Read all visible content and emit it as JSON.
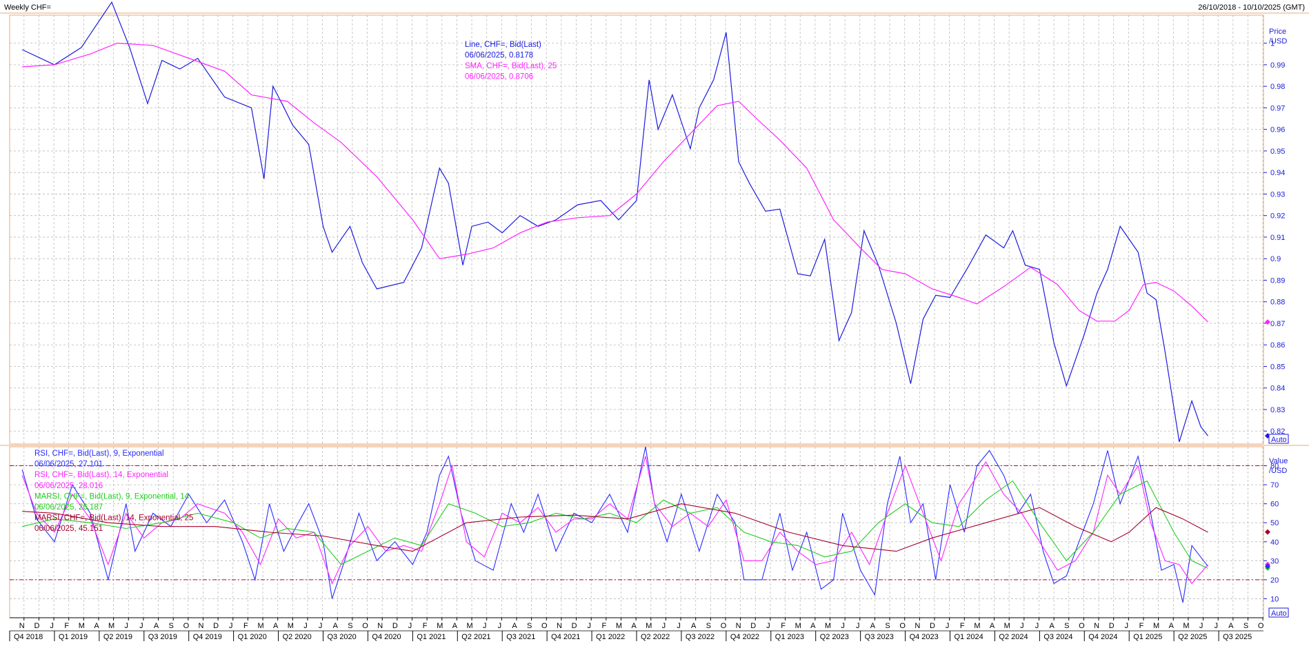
{
  "header": {
    "title": "Weekly CHF=",
    "date_range": "26/10/2018 - 10/10/2025 (GMT)"
  },
  "colors": {
    "price_line": "#1a1adc",
    "sma": "#ff22ff",
    "rsi9": "#2a2aff",
    "rsi14": "#ff22ff",
    "marsi9": "#1fcc1f",
    "marsi14": "#a3002a",
    "band": "#b0003c",
    "grid": "#b8b8b8",
    "frame": "#e8a878"
  },
  "chart_data": [
    {
      "type": "line",
      "panel": "price",
      "legend": [
        {
          "text": "Line, CHF=, Bid(Last)",
          "color": "#1a1adc"
        },
        {
          "text": "06/06/2025, 0.8178",
          "color": "#1a1adc"
        },
        {
          "text": "SMA, CHF=, Bid(Last),  25",
          "color": "#ff22ff"
        },
        {
          "text": "06/06/2025, 0.8706",
          "color": "#ff22ff"
        }
      ],
      "ylabel": "Price",
      "yunit": "/USD",
      "auto_label": "Auto",
      "ylim": [
        0.814,
        1.013
      ],
      "yticks": [
        "0.82",
        "0.83",
        "0.84",
        "0.85",
        "0.86",
        "0.87",
        "0.88",
        "0.89",
        "0.9",
        "0.91",
        "0.92",
        "0.93",
        "0.94",
        "0.95",
        "0.96",
        "0.97",
        "0.98",
        "0.99",
        "1"
      ],
      "last_values": {
        "line": 0.8178,
        "sma": 0.8706
      },
      "series": [
        {
          "name": "Line, CHF=, Bid(Last)",
          "x": [
            2018.82,
            2019.0,
            2019.15,
            2019.32,
            2019.42,
            2019.52,
            2019.6,
            2019.7,
            2019.8,
            2019.95,
            2020.1,
            2020.17,
            2020.22,
            2020.27,
            2020.33,
            2020.42,
            2020.5,
            2020.55,
            2020.65,
            2020.72,
            2020.8,
            2020.95,
            2021.05,
            2021.15,
            2021.2,
            2021.28,
            2021.33,
            2021.42,
            2021.5,
            2021.6,
            2021.7,
            2021.8,
            2021.92,
            2022.05,
            2022.15,
            2022.25,
            2022.32,
            2022.37,
            2022.45,
            2022.55,
            2022.6,
            2022.68,
            2022.75,
            2022.82,
            2022.88,
            2022.97,
            2023.05,
            2023.15,
            2023.22,
            2023.3,
            2023.38,
            2023.45,
            2023.52,
            2023.6,
            2023.7,
            2023.78,
            2023.85,
            2023.92,
            2024.0,
            2024.1,
            2024.2,
            2024.3,
            2024.35,
            2024.42,
            2024.5,
            2024.58,
            2024.65,
            2024.75,
            2024.82,
            2024.88,
            2024.95,
            2025.05,
            2025.1,
            2025.15,
            2025.2,
            2025.28,
            2025.35,
            2025.4,
            2025.44
          ],
          "y": [
            0.997,
            0.99,
            0.998,
            1.019,
            0.998,
            0.972,
            0.992,
            0.988,
            0.993,
            0.975,
            0.97,
            0.937,
            0.98,
            0.972,
            0.962,
            0.953,
            0.915,
            0.903,
            0.915,
            0.898,
            0.886,
            0.889,
            0.905,
            0.942,
            0.935,
            0.897,
            0.915,
            0.917,
            0.912,
            0.92,
            0.915,
            0.918,
            0.925,
            0.927,
            0.918,
            0.927,
            0.983,
            0.96,
            0.976,
            0.951,
            0.97,
            0.983,
            1.005,
            0.945,
            0.935,
            0.922,
            0.923,
            0.893,
            0.892,
            0.909,
            0.862,
            0.875,
            0.913,
            0.897,
            0.87,
            0.842,
            0.872,
            0.883,
            0.882,
            0.896,
            0.911,
            0.905,
            0.913,
            0.897,
            0.895,
            0.861,
            0.841,
            0.865,
            0.884,
            0.895,
            0.915,
            0.903,
            0.884,
            0.881,
            0.857,
            0.815,
            0.834,
            0.822,
            0.8178
          ]
        },
        {
          "name": "SMA, CHF=, Bid(Last),  25",
          "x": [
            2018.82,
            2019.0,
            2019.2,
            2019.35,
            2019.55,
            2019.75,
            2019.95,
            2020.1,
            2020.3,
            2020.45,
            2020.6,
            2020.8,
            2021.0,
            2021.15,
            2021.3,
            2021.45,
            2021.6,
            2021.75,
            2021.92,
            2022.1,
            2022.25,
            2022.4,
            2022.55,
            2022.7,
            2022.82,
            2022.92,
            2023.05,
            2023.2,
            2023.35,
            2023.5,
            2023.62,
            2023.75,
            2023.9,
            2024.05,
            2024.15,
            2024.3,
            2024.45,
            2024.6,
            2024.72,
            2024.82,
            2024.92,
            2025.0,
            2025.08,
            2025.15,
            2025.25,
            2025.35,
            2025.44
          ],
          "y": [
            0.989,
            0.99,
            0.995,
            1.0,
            0.999,
            0.993,
            0.987,
            0.976,
            0.973,
            0.963,
            0.954,
            0.938,
            0.918,
            0.9,
            0.902,
            0.905,
            0.912,
            0.917,
            0.919,
            0.92,
            0.93,
            0.945,
            0.958,
            0.971,
            0.973,
            0.965,
            0.955,
            0.942,
            0.918,
            0.905,
            0.895,
            0.893,
            0.886,
            0.882,
            0.879,
            0.887,
            0.896,
            0.888,
            0.876,
            0.871,
            0.871,
            0.876,
            0.888,
            0.889,
            0.885,
            0.878,
            0.8706
          ]
        }
      ]
    },
    {
      "type": "line",
      "panel": "rsi",
      "legend": [
        {
          "text": "RSI, CHF=, Bid(Last),  9, Exponential",
          "color": "#2a2aff"
        },
        {
          "text": "06/06/2025, 27.101",
          "color": "#2a2aff"
        },
        {
          "text": "RSI, CHF=, Bid(Last),  14, Exponential",
          "color": "#ff22ff"
        },
        {
          "text": "06/06/2025, 28.016",
          "color": "#ff22ff"
        },
        {
          "text": "MARSI, CHF=, Bid(Last),  9, Exponential, 14",
          "color": "#1fcc1f"
        },
        {
          "text": "06/06/2025, 26.187",
          "color": "#1fcc1f"
        },
        {
          "text": "MARSI, CHF=, Bid(Last),  14, Exponential, 25",
          "color": "#a3002a"
        },
        {
          "text": "06/06/2025, 45.151",
          "color": "#a3002a"
        }
      ],
      "ylabel": "Value",
      "yunit": "/USD",
      "ylim": [
        0,
        90
      ],
      "yticks": [
        "10",
        "20",
        "30",
        "40",
        "50",
        "60",
        "70",
        "80"
      ],
      "bands": [
        20,
        80
      ],
      "last_values": {
        "rsi9": 27.101,
        "rsi14": 28.016,
        "marsi9": 26.187,
        "marsi14": 45.151
      },
      "series": [
        {
          "name": "RSI, CHF=, Bid(Last),  9, Exponential",
          "x": [
            2018.82,
            2018.9,
            2019.0,
            2019.1,
            2019.2,
            2019.3,
            2019.4,
            2019.45,
            2019.55,
            2019.65,
            2019.75,
            2019.85,
            2019.95,
            2020.05,
            2020.12,
            2020.2,
            2020.28,
            2020.35,
            2020.42,
            2020.5,
            2020.55,
            2020.62,
            2020.7,
            2020.8,
            2020.9,
            2021.0,
            2021.08,
            2021.15,
            2021.2,
            2021.27,
            2021.35,
            2021.45,
            2021.55,
            2021.62,
            2021.7,
            2021.8,
            2021.9,
            2022.0,
            2022.1,
            2022.2,
            2022.3,
            2022.35,
            2022.42,
            2022.5,
            2022.6,
            2022.7,
            2022.8,
            2022.85,
            2022.95,
            2023.05,
            2023.12,
            2023.2,
            2023.28,
            2023.35,
            2023.4,
            2023.5,
            2023.58,
            2023.65,
            2023.72,
            2023.78,
            2023.85,
            2023.92,
            2024.0,
            2024.08,
            2024.15,
            2024.22,
            2024.3,
            2024.38,
            2024.45,
            2024.52,
            2024.58,
            2024.65,
            2024.72,
            2024.8,
            2024.88,
            2024.95,
            2025.05,
            2025.12,
            2025.18,
            2025.25,
            2025.3,
            2025.35,
            2025.44
          ],
          "y": [
            78,
            52,
            40,
            70,
            55,
            20,
            60,
            35,
            55,
            48,
            65,
            50,
            62,
            40,
            20,
            60,
            35,
            48,
            60,
            40,
            10,
            30,
            55,
            30,
            40,
            28,
            45,
            75,
            85,
            55,
            30,
            25,
            60,
            45,
            65,
            35,
            55,
            50,
            65,
            45,
            90,
            60,
            40,
            65,
            35,
            65,
            50,
            20,
            20,
            55,
            25,
            45,
            15,
            20,
            55,
            25,
            12,
            60,
            85,
            50,
            60,
            20,
            70,
            45,
            80,
            88,
            75,
            55,
            65,
            35,
            18,
            22,
            40,
            60,
            88,
            60,
            85,
            55,
            25,
            28,
            8,
            38,
            27
          ]
        },
        {
          "name": "RSI, CHF=, Bid(Last),  14, Exponential",
          "x": [
            2018.82,
            2018.9,
            2019.0,
            2019.1,
            2019.2,
            2019.3,
            2019.4,
            2019.5,
            2019.6,
            2019.7,
            2019.8,
            2019.95,
            2020.05,
            2020.15,
            2020.25,
            2020.35,
            2020.45,
            2020.55,
            2020.65,
            2020.75,
            2020.85,
            2020.95,
            2021.05,
            2021.15,
            2021.22,
            2021.3,
            2021.4,
            2021.5,
            2021.6,
            2021.7,
            2021.8,
            2021.9,
            2022.0,
            2022.1,
            2022.2,
            2022.3,
            2022.35,
            2022.45,
            2022.55,
            2022.65,
            2022.75,
            2022.85,
            2022.95,
            2023.05,
            2023.15,
            2023.25,
            2023.35,
            2023.45,
            2023.55,
            2023.65,
            2023.75,
            2023.85,
            2023.95,
            2024.05,
            2024.12,
            2024.2,
            2024.3,
            2024.4,
            2024.5,
            2024.6,
            2024.7,
            2024.8,
            2024.88,
            2024.95,
            2025.05,
            2025.12,
            2025.2,
            2025.28,
            2025.35,
            2025.44
          ],
          "y": [
            75,
            55,
            45,
            65,
            52,
            28,
            55,
            42,
            50,
            52,
            60,
            55,
            45,
            28,
            52,
            42,
            45,
            18,
            38,
            48,
            35,
            38,
            35,
            60,
            80,
            40,
            32,
            55,
            50,
            58,
            45,
            52,
            52,
            60,
            52,
            85,
            60,
            48,
            55,
            48,
            62,
            30,
            30,
            45,
            35,
            28,
            30,
            45,
            28,
            55,
            80,
            55,
            30,
            60,
            70,
            82,
            65,
            55,
            40,
            25,
            30,
            45,
            75,
            65,
            80,
            50,
            30,
            28,
            18,
            28
          ]
        },
        {
          "name": "MARSI, CHF=, Bid(Last),  9, Exponential, 14",
          "x": [
            2018.82,
            2019.0,
            2019.2,
            2019.4,
            2019.6,
            2019.8,
            2020.0,
            2020.15,
            2020.3,
            2020.45,
            2020.6,
            2020.75,
            2020.9,
            2021.05,
            2021.2,
            2021.35,
            2021.5,
            2021.65,
            2021.8,
            2021.95,
            2022.1,
            2022.25,
            2022.4,
            2022.55,
            2022.7,
            2022.85,
            2023.0,
            2023.15,
            2023.3,
            2023.45,
            2023.6,
            2023.75,
            2023.9,
            2024.05,
            2024.2,
            2024.35,
            2024.5,
            2024.65,
            2024.8,
            2024.95,
            2025.1,
            2025.25,
            2025.35,
            2025.44
          ],
          "y": [
            48,
            52,
            50,
            47,
            50,
            55,
            50,
            42,
            47,
            45,
            28,
            35,
            42,
            38,
            60,
            55,
            48,
            50,
            55,
            52,
            55,
            50,
            62,
            55,
            58,
            45,
            40,
            38,
            32,
            35,
            50,
            60,
            50,
            48,
            62,
            72,
            50,
            30,
            45,
            65,
            72,
            45,
            30,
            26
          ]
        },
        {
          "name": "MARSI, CHF=, Bid(Last),  14, Exponential, 25",
          "x": [
            2018.82,
            2019.0,
            2019.3,
            2019.6,
            2019.9,
            2020.2,
            2020.5,
            2020.8,
            2021.0,
            2021.3,
            2021.6,
            2021.9,
            2022.2,
            2022.5,
            2022.8,
            2023.1,
            2023.4,
            2023.7,
            2023.9,
            2024.2,
            2024.5,
            2024.7,
            2024.9,
            2025.0,
            2025.15,
            2025.3,
            2025.44
          ],
          "y": [
            56,
            55,
            50,
            48,
            48,
            45,
            43,
            38,
            35,
            50,
            53,
            54,
            52,
            60,
            55,
            45,
            38,
            35,
            42,
            50,
            58,
            48,
            40,
            45,
            58,
            52,
            45
          ]
        }
      ]
    }
  ],
  "xaxis": {
    "start": 2018.75,
    "end": 2025.75,
    "month_labels": [
      "N",
      "D",
      "J",
      "F",
      "M",
      "A",
      "M",
      "J",
      "J",
      "A",
      "S",
      "O",
      "N",
      "D",
      "J",
      "F",
      "M",
      "A",
      "M",
      "J",
      "J",
      "A",
      "S",
      "O",
      "N",
      "D",
      "J",
      "F",
      "M",
      "A",
      "M",
      "J",
      "J",
      "A",
      "S",
      "O",
      "N",
      "D",
      "J",
      "F",
      "M",
      "A",
      "M",
      "J",
      "J",
      "A",
      "S",
      "O",
      "N",
      "D",
      "J",
      "F",
      "M",
      "A",
      "M",
      "J",
      "J",
      "A",
      "S",
      "O",
      "N",
      "D",
      "J",
      "F",
      "M",
      "A",
      "M",
      "J",
      "J",
      "A",
      "S",
      "O",
      "N",
      "D",
      "J",
      "F",
      "M",
      "A",
      "M",
      "J",
      "J",
      "A",
      "S",
      "O"
    ],
    "month_start": 2018.83,
    "quarter_labels": [
      "Q4 2018",
      "Q1 2019",
      "Q2 2019",
      "Q3 2019",
      "Q4 2019",
      "Q1 2020",
      "Q2 2020",
      "Q3 2020",
      "Q4 2020",
      "Q1 2021",
      "Q2 2021",
      "Q3 2021",
      "Q4 2021",
      "Q1 2022",
      "Q2 2022",
      "Q3 2022",
      "Q4 2022",
      "Q1 2023",
      "Q2 2023",
      "Q3 2023",
      "Q4 2023",
      "Q1 2024",
      "Q2 2024",
      "Q3 2024",
      "Q4 2024",
      "Q1 2025",
      "Q2 2025",
      "Q3 2025"
    ],
    "quarter_start": 2018.75
  }
}
